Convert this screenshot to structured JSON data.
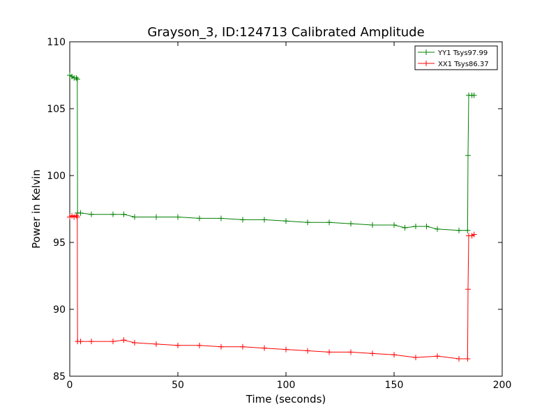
{
  "chart_data": {
    "type": "line",
    "title": "Grayson_3, ID:124713 Calibrated Amplitude",
    "xlabel": "Time (seconds)",
    "ylabel": "Power in Kelvin",
    "xlim": [
      0,
      200
    ],
    "ylim": [
      85,
      110
    ],
    "xticks": [
      "0",
      "50",
      "100",
      "150",
      "200"
    ],
    "yticks": [
      "85",
      "90",
      "95",
      "100",
      "105",
      "110"
    ],
    "grid": false,
    "legend_position": "top-right",
    "series": [
      {
        "name": "YY1 Tsys97.99",
        "color": "#008000",
        "x": [
          0,
          1,
          2,
          3,
          3.5,
          3.6,
          5,
          10,
          20,
          25,
          30,
          40,
          50,
          60,
          70,
          80,
          90,
          100,
          110,
          120,
          130,
          140,
          150,
          155,
          160,
          165,
          170,
          180,
          184,
          184.2,
          184.5,
          186,
          187
        ],
        "y": [
          107.5,
          107.4,
          107.3,
          107.3,
          107.2,
          97.2,
          97.2,
          97.1,
          97.1,
          97.1,
          96.9,
          96.9,
          96.9,
          96.8,
          96.8,
          96.7,
          96.7,
          96.6,
          96.5,
          96.5,
          96.4,
          96.3,
          96.3,
          96.1,
          96.2,
          96.2,
          96.0,
          95.9,
          95.9,
          101.5,
          106.0,
          106.0,
          106.0
        ]
      },
      {
        "name": "XX1 Tsys86.37",
        "color": "#ff0000",
        "x": [
          0,
          1,
          2,
          3,
          3.5,
          3.6,
          5,
          10,
          20,
          25,
          30,
          40,
          50,
          60,
          70,
          80,
          90,
          100,
          110,
          120,
          130,
          140,
          150,
          160,
          170,
          180,
          184,
          184.2,
          184.5,
          186,
          187
        ],
        "y": [
          96.9,
          97.0,
          96.9,
          97.0,
          96.9,
          87.6,
          87.6,
          87.6,
          87.6,
          87.7,
          87.5,
          87.4,
          87.3,
          87.3,
          87.2,
          87.2,
          87.1,
          87.0,
          86.9,
          86.8,
          86.8,
          86.7,
          86.6,
          86.4,
          86.5,
          86.3,
          86.3,
          91.5,
          95.5,
          95.5,
          95.6
        ]
      }
    ]
  }
}
